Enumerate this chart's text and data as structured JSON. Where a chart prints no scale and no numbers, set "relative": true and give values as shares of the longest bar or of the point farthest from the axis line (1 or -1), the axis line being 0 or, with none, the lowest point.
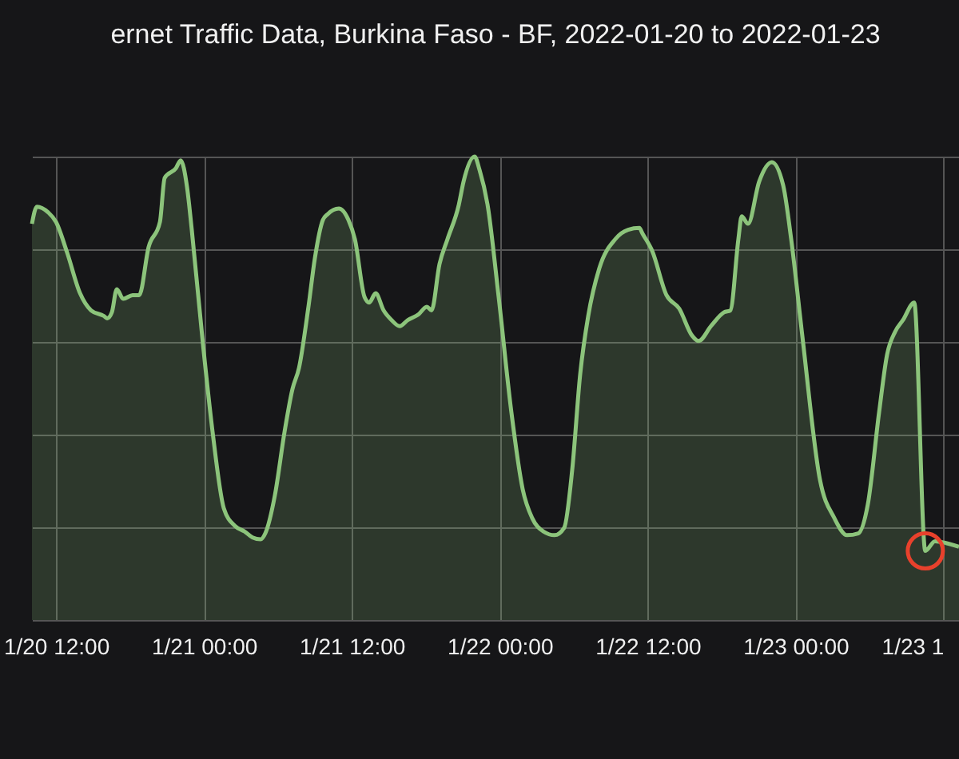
{
  "chart_data": {
    "type": "area",
    "title": "ernet Traffic Data, Burkina Faso - BF, 2022-01-20 to 2022-01-23",
    "relative": true,
    "grid": true,
    "xlim": [
      "2022-01-20T10:03",
      "2022-01-23T13:16"
    ],
    "xticks": [
      {
        "value": "2022-01-20T12:00",
        "label": "1/20 12:00"
      },
      {
        "value": "2022-01-21T00:00",
        "label": "1/21 00:00"
      },
      {
        "value": "2022-01-21T12:00",
        "label": "1/21 12:00"
      },
      {
        "value": "2022-01-22T00:00",
        "label": "1/22 00:00"
      },
      {
        "value": "2022-01-22T12:00",
        "label": "1/22 12:00"
      },
      {
        "value": "2022-01-23T00:00",
        "label": "1/23 00:00"
      },
      {
        "value": "2022-01-23T12:00",
        "label": "1/23 1"
      }
    ],
    "x": [
      "2022-01-20T10:03",
      "2022-01-20T10:27",
      "2022-01-20T11:21",
      "2022-01-20T12:00",
      "2022-01-20T12:54",
      "2022-01-20T13:57",
      "2022-01-20T14:51",
      "2022-01-20T15:53",
      "2022-01-20T16:09",
      "2022-01-20T16:32",
      "2022-01-20T16:56",
      "2022-01-20T17:27",
      "2022-01-20T18:13",
      "2022-01-20T18:45",
      "2022-01-20T19:31",
      "2022-01-20T20:26",
      "2022-01-20T20:49",
      "2022-01-20T21:44",
      "2022-01-20T22:07",
      "2022-01-20T22:38",
      "2022-01-20T23:01",
      "2022-01-20T23:56",
      "2022-01-21T00:42",
      "2022-01-21T01:37",
      "2022-01-21T02:31",
      "2022-01-21T03:18",
      "2022-01-21T03:57",
      "2022-01-21T04:36",
      "2022-01-21T04:59",
      "2022-01-21T05:46",
      "2022-01-21T06:33",
      "2022-01-21T07:11",
      "2022-01-21T07:43",
      "2022-01-21T08:29",
      "2022-01-21T09:00",
      "2022-01-21T09:39",
      "2022-01-21T10:03",
      "2022-01-21T10:57",
      "2022-01-21T11:44",
      "2022-01-21T12:15",
      "2022-01-21T13:02",
      "2022-01-21T13:25",
      "2022-01-21T13:56",
      "2022-01-21T14:35",
      "2022-01-21T15:14",
      "2022-01-21T15:53",
      "2022-01-21T16:32",
      "2022-01-21T17:26",
      "2022-01-21T18:05",
      "2022-01-21T18:28",
      "2022-01-21T19:07",
      "2022-01-21T19:46",
      "2022-01-21T20:41",
      "2022-01-21T21:04",
      "2022-01-21T21:58",
      "2022-01-21T22:22",
      "2022-01-21T23:01",
      "2022-01-21T23:55",
      "2022-01-22T00:57",
      "2022-01-22T01:52",
      "2022-01-22T02:38",
      "2022-01-22T03:33",
      "2022-01-22T04:27",
      "2022-01-22T05:14",
      "2022-01-22T05:53",
      "2022-01-22T06:32",
      "2022-01-22T07:11",
      "2022-01-22T08:05",
      "2022-01-22T09:23",
      "2022-01-22T10:25",
      "2022-01-22T11:20",
      "2022-01-22T11:35",
      "2022-01-22T12:22",
      "2022-01-22T13:32",
      "2022-01-22T14:34",
      "2022-01-22T15:36",
      "2022-01-22T16:08",
      "2022-01-22T17:10",
      "2022-01-22T18:12",
      "2022-01-22T18:43",
      "2022-01-22T19:22",
      "2022-01-22T19:38",
      "2022-01-22T20:09",
      "2022-01-22T21:03",
      "2022-01-22T22:05",
      "2022-01-22T23:00",
      "2022-01-22T23:39",
      "2022-01-23T00:33",
      "2022-01-23T01:59",
      "2022-01-23T03:09",
      "2022-01-23T04:11",
      "2022-01-23T05:06",
      "2022-01-23T05:52",
      "2022-01-23T06:47",
      "2022-01-23T07:26",
      "2022-01-23T08:05",
      "2022-01-23T08:43",
      "2022-01-23T09:38",
      "2022-01-23T10:32",
      "2022-01-23T11:19",
      "2022-01-23T12:13",
      "2022-01-23T13:16"
    ],
    "series": [
      {
        "color": "#8cc47b",
        "values": [
          0.855,
          0.892,
          0.88,
          0.859,
          0.793,
          0.705,
          0.668,
          0.656,
          0.651,
          0.664,
          0.714,
          0.693,
          0.701,
          0.701,
          0.805,
          0.859,
          0.954,
          0.975,
          0.992,
          0.934,
          0.842,
          0.593,
          0.407,
          0.241,
          0.203,
          0.191,
          0.178,
          0.174,
          0.187,
          0.27,
          0.407,
          0.498,
          0.544,
          0.676,
          0.78,
          0.863,
          0.876,
          0.888,
          0.863,
          0.822,
          0.697,
          0.685,
          0.705,
          0.668,
          0.647,
          0.634,
          0.647,
          0.66,
          0.676,
          0.668,
          0.768,
          0.822,
          0.896,
          0.946,
          1.0,
          0.971,
          0.896,
          0.697,
          0.448,
          0.282,
          0.22,
          0.191,
          0.183,
          0.199,
          0.324,
          0.531,
          0.656,
          0.759,
          0.822,
          0.842,
          0.846,
          0.834,
          0.797,
          0.701,
          0.672,
          0.614,
          0.602,
          0.635,
          0.664,
          0.668,
          0.822,
          0.871,
          0.855,
          0.946,
          0.988,
          0.938,
          0.822,
          0.614,
          0.303,
          0.22,
          0.183,
          0.187,
          0.249,
          0.448,
          0.573,
          0.622,
          0.647,
          0.685,
          0.149,
          0.17,
          0.166,
          0.158
        ]
      }
    ]
  }
}
